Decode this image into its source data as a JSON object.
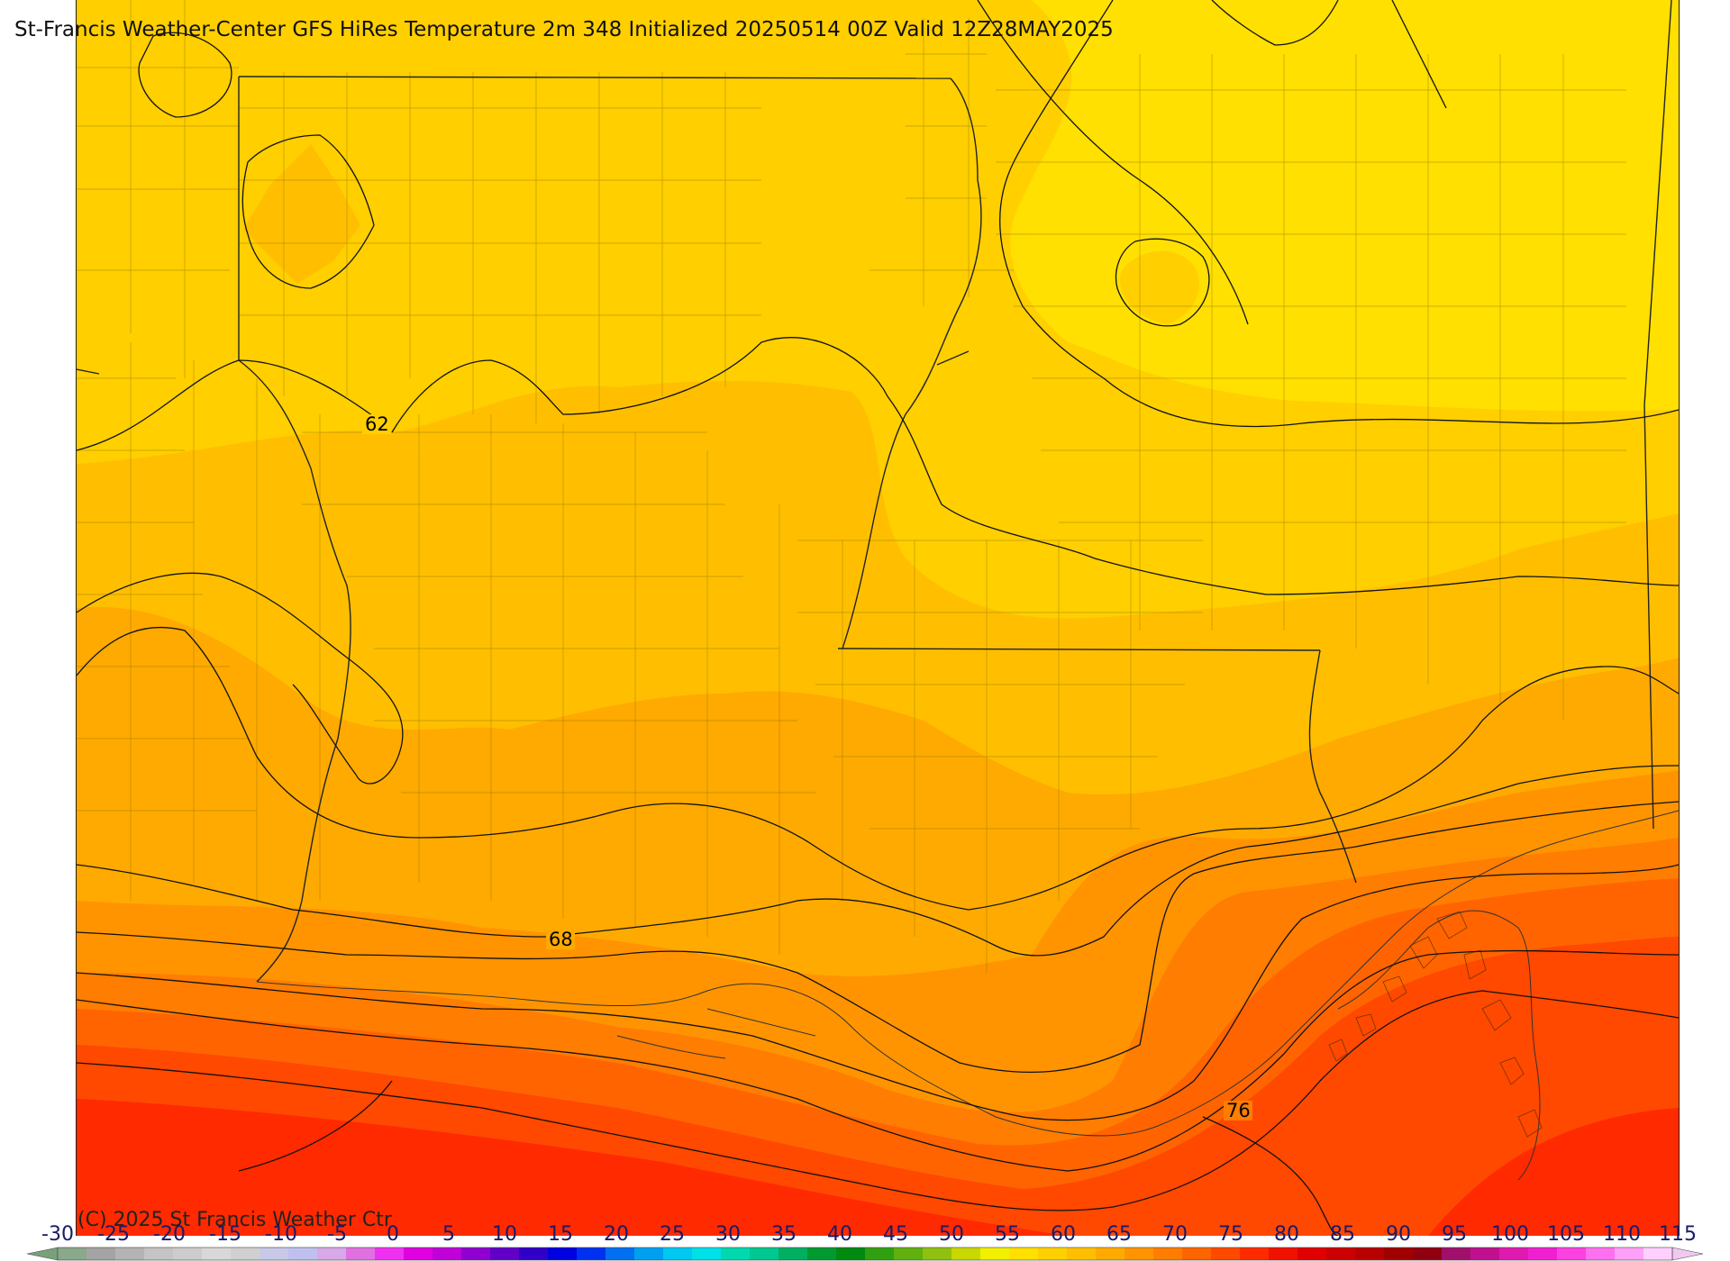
{
  "title": "St-Francis Weather-Center GFS HiRes Temperature 2m  348 Initialized 20250514 00Z Valid 12Z28MAY2025",
  "copyright": "(C) 2025 St Francis Weather Ctr",
  "contour_labels": {
    "c62": "62",
    "c68": "68",
    "c76": "76"
  },
  "colorbar": {
    "labels": [
      "-30",
      "-25",
      "-20",
      "-15",
      "-10",
      "-5",
      "0",
      "5",
      "10",
      "15",
      "20",
      "25",
      "30",
      "35",
      "40",
      "45",
      "50",
      "55",
      "60",
      "65",
      "70",
      "75",
      "80",
      "85",
      "90",
      "95",
      "100",
      "105",
      "110",
      "115"
    ],
    "colors": [
      "#8aa88a",
      "#a4a4a4",
      "#b4b4b4",
      "#c4c4c4",
      "#cccccc",
      "#d8d8d8",
      "#d0d0d0",
      "#c8c8e8",
      "#c0c0f0",
      "#d8a8e8",
      "#e070e0",
      "#f030f0",
      "#e000e0",
      "#c000d8",
      "#9000d0",
      "#6000c8",
      "#3000c8",
      "#0000e0",
      "#0030f0",
      "#0070f0",
      "#00a0f0",
      "#00c8f0",
      "#00e0e8",
      "#00d8b0",
      "#00c890",
      "#00b060",
      "#009a30",
      "#008a10",
      "#30a010",
      "#60b010",
      "#90c010",
      "#c8d800",
      "#f0f000",
      "#ffe000",
      "#ffd000",
      "#ffbf00",
      "#ffaa00",
      "#ff9400",
      "#ff7d00",
      "#ff6400",
      "#ff4800",
      "#ff2a00",
      "#f21000",
      "#e00000",
      "#cc0000",
      "#b80000",
      "#a00000",
      "#900010",
      "#a0106a",
      "#c01090",
      "#e01ab0",
      "#f020d0",
      "#ff40e0",
      "#ff70f0",
      "#ffa0f8",
      "#ffd0ff"
    ],
    "left_arrow_color": "#7aa07a",
    "right_arrow_color": "#f0c8f0"
  }
}
